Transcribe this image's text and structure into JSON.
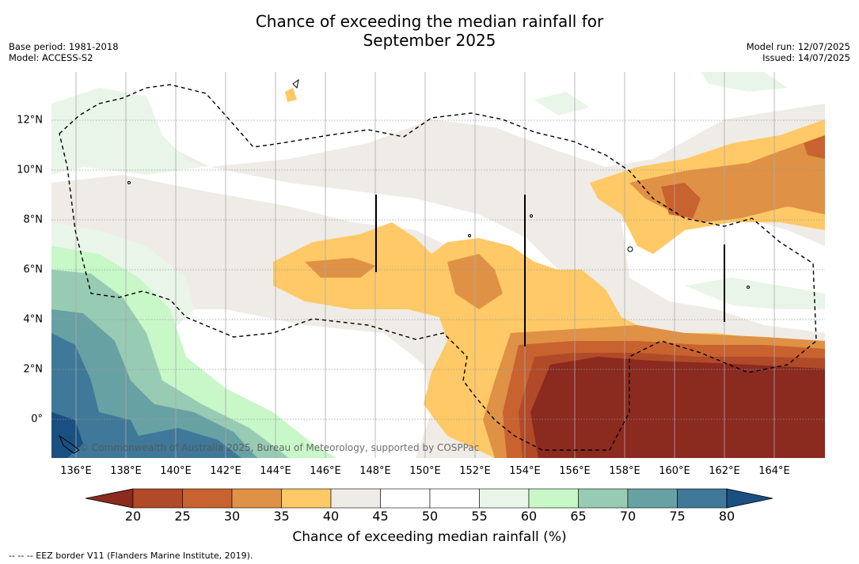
{
  "title_line1": "Chance of exceeding the median rainfall for",
  "title_line2": "September 2025",
  "meta_left": {
    "base_period": "Base period: 1981-2018",
    "model": "Model: ACCESS-S2"
  },
  "meta_right": {
    "model_run": "Model run: 12/07/2025",
    "issued": "Issued: 14/07/2025"
  },
  "credit": "© Commonwealth of Australia 2025, Bureau of Meteorology, supported by COSPPac",
  "lon_labels": [
    "136°E",
    "138°E",
    "140°E",
    "142°E",
    "144°E",
    "146°E",
    "148°E",
    "150°E",
    "152°E",
    "154°E",
    "156°E",
    "158°E",
    "160°E",
    "162°E",
    "164°E"
  ],
  "lat_labels": [
    "12°N",
    "10°N",
    "8°N",
    "6°N",
    "4°N",
    "2°N",
    "0°"
  ],
  "colorbar": {
    "ticks": [
      "20",
      "25",
      "30",
      "35",
      "40",
      "45",
      "50",
      "55",
      "60",
      "65",
      "70",
      "75",
      "80"
    ],
    "colors": [
      "#8b2a1f",
      "#b04a28",
      "#c8622f",
      "#df9145",
      "#fec966",
      "#efebe6",
      "#ffffff",
      "#ffffff",
      "#e9f5e9",
      "#c8f7c8",
      "#98cbb3",
      "#68a1a4",
      "#3f7898",
      "#1a4f82"
    ],
    "label": "Chance of exceeding median rainfall (%)"
  },
  "footnote": "--  --  -- EEZ border V11 (Flanders Marine Institute, 2019)."
}
